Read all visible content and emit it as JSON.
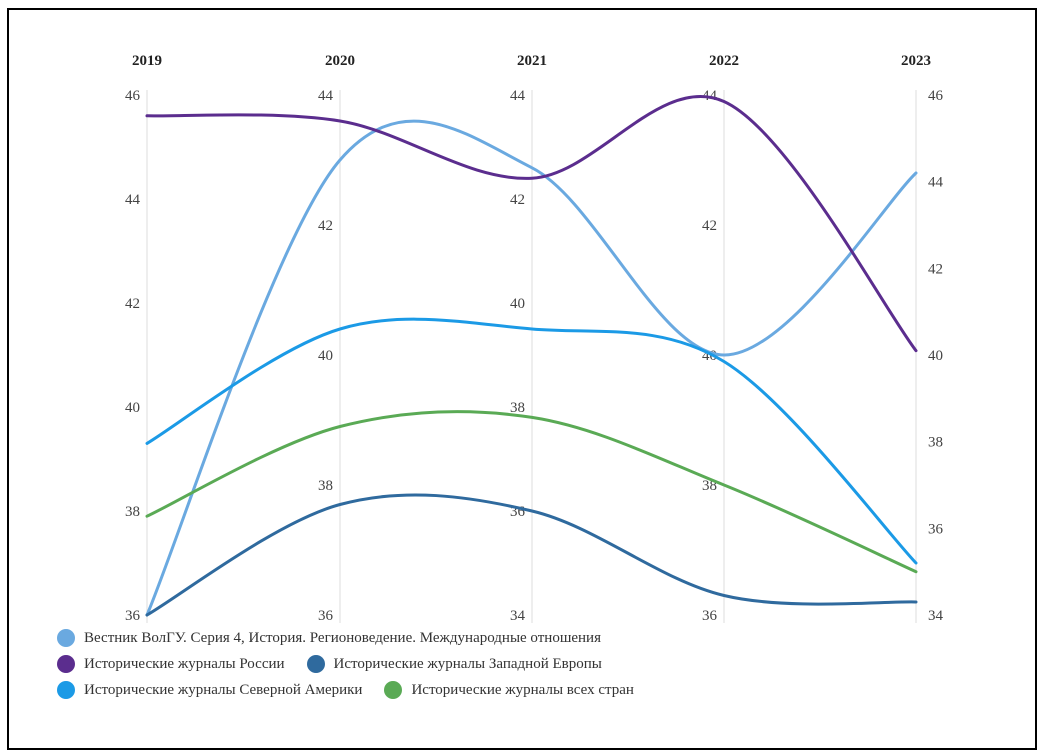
{
  "chart_data": {
    "type": "line",
    "subtype": "parallel-axes",
    "x": [
      "2019",
      "2020",
      "2021",
      "2022",
      "2023"
    ],
    "axes": [
      {
        "label": "2019",
        "range": [
          36,
          46
        ],
        "ticks": [
          36,
          38,
          40,
          42,
          44,
          46
        ]
      },
      {
        "label": "2020",
        "range": [
          36,
          44
        ],
        "ticks": [
          36,
          38,
          40,
          42,
          44
        ]
      },
      {
        "label": "2021",
        "range": [
          34,
          44
        ],
        "ticks": [
          34,
          36,
          38,
          40,
          42,
          44
        ]
      },
      {
        "label": "2022",
        "range": [
          36,
          44
        ],
        "ticks": [
          36,
          38,
          40,
          42,
          44
        ]
      },
      {
        "label": "2023",
        "range": [
          34,
          46
        ],
        "ticks": [
          34,
          36,
          38,
          40,
          42,
          44,
          46
        ]
      }
    ],
    "series": [
      {
        "name": "Вестник ВолГУ. Серия 4, История. Регионоведение. Международные отношения",
        "color": "#6aa9e0",
        "values": [
          36.0,
          43.0,
          42.6,
          40.0,
          44.2
        ]
      },
      {
        "name": "Исторические журналы России",
        "color": "#5b2d8e",
        "values": [
          45.6,
          43.6,
          42.4,
          43.9,
          40.1
        ]
      },
      {
        "name": "Исторические журналы Западной Европы",
        "color": "#2f6a9e",
        "values": [
          36.0,
          37.7,
          36.0,
          36.3,
          34.3
        ]
      },
      {
        "name": "Исторические журналы Северной Америки",
        "color": "#1b9ae6",
        "values": [
          39.3,
          40.4,
          39.5,
          39.9,
          35.2
        ]
      },
      {
        "name": "Исторические журналы всех стран",
        "color": "#5aaa55",
        "values": [
          37.9,
          38.9,
          37.8,
          38.0,
          35.0
        ]
      }
    ],
    "legend_position": "bottom-left",
    "grid": false
  },
  "legend_rows": [
    [
      0
    ],
    [
      1,
      2
    ],
    [
      3,
      4
    ]
  ]
}
